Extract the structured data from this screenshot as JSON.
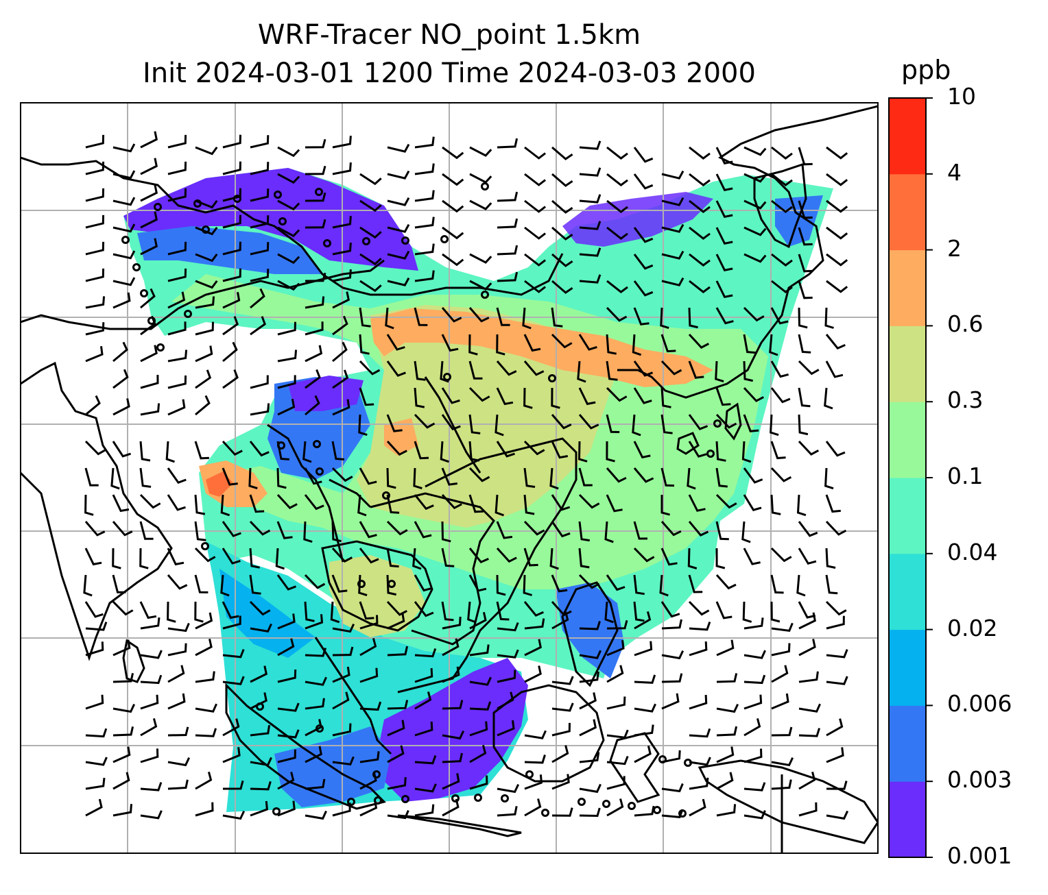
{
  "title": {
    "line1": "WRF-Tracer NO_point 1.5km",
    "line2": "Init 2024-03-01 1200 Time 2024-03-03 2000"
  },
  "colorbar": {
    "unit": "ppb",
    "levels": [
      "0.001",
      "0.003",
      "0.006",
      "0.02",
      "0.04",
      "0.1",
      "0.3",
      "0.6",
      "2",
      "4",
      "10"
    ],
    "colors": [
      "#6a2dfb",
      "#3477f5",
      "#05b1ef",
      "#2ee0d6",
      "#5df5c2",
      "#98f99a",
      "#cde283",
      "#fdac60",
      "#ff6f3a",
      "#fe2a14"
    ]
  },
  "map": {
    "land_outline_color": "#000000",
    "gridline_color": "#b0b0b0",
    "station_marker": "circle-icon",
    "wind_symbol": "wind-barb-icon"
  }
}
